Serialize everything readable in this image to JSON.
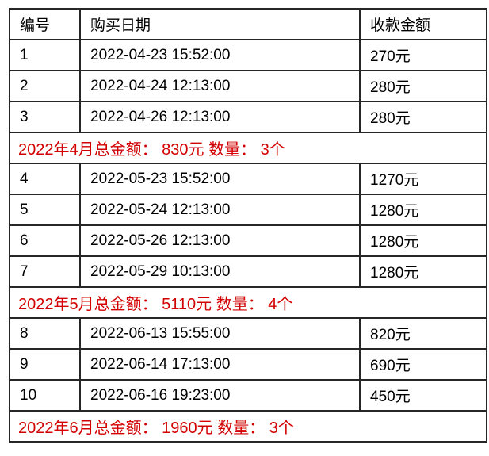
{
  "page": {
    "background": "#ffffff"
  },
  "table": {
    "columns": [
      {
        "key": "id",
        "label": "编号"
      },
      {
        "key": "date",
        "label": "购买日期"
      },
      {
        "key": "amount",
        "label": "收款金额"
      }
    ],
    "rows": [
      {
        "type": "data",
        "id": "1",
        "date": "2022-04-23 15:52:00",
        "amount": "270元"
      },
      {
        "type": "data",
        "id": "2",
        "date": "2022-04-24 12:13:00",
        "amount": "280元"
      },
      {
        "type": "data",
        "id": "3",
        "date": "2022-04-26 12:13:00",
        "amount": "280元"
      },
      {
        "type": "summary",
        "text": "2022年4月总金额： 830元 数量： 3个"
      },
      {
        "type": "data",
        "id": "4",
        "date": "2022-05-23 15:52:00",
        "amount": "1270元"
      },
      {
        "type": "data",
        "id": "5",
        "date": "2022-05-24 12:13:00",
        "amount": "1280元"
      },
      {
        "type": "data",
        "id": "6",
        "date": "2022-05-26 12:13:00",
        "amount": "1280元"
      },
      {
        "type": "data",
        "id": "7",
        "date": "2022-05-29 10:13:00",
        "amount": "1280元"
      },
      {
        "type": "summary",
        "text": "2022年5月总金额： 5110元 数量： 4个"
      },
      {
        "type": "data",
        "id": "8",
        "date": "2022-06-13 15:55:00",
        "amount": "820元"
      },
      {
        "type": "data",
        "id": "9",
        "date": "2022-06-14 17:13:00",
        "amount": "690元"
      },
      {
        "type": "data",
        "id": "10",
        "date": "2022-06-16 19:23:00",
        "amount": "450元"
      },
      {
        "type": "summary",
        "text": "2022年6月总金额： 1960元 数量： 3个"
      }
    ],
    "style": {
      "summary_color": "#d20000",
      "border_color": "#262626",
      "text_color": "#000000"
    }
  }
}
